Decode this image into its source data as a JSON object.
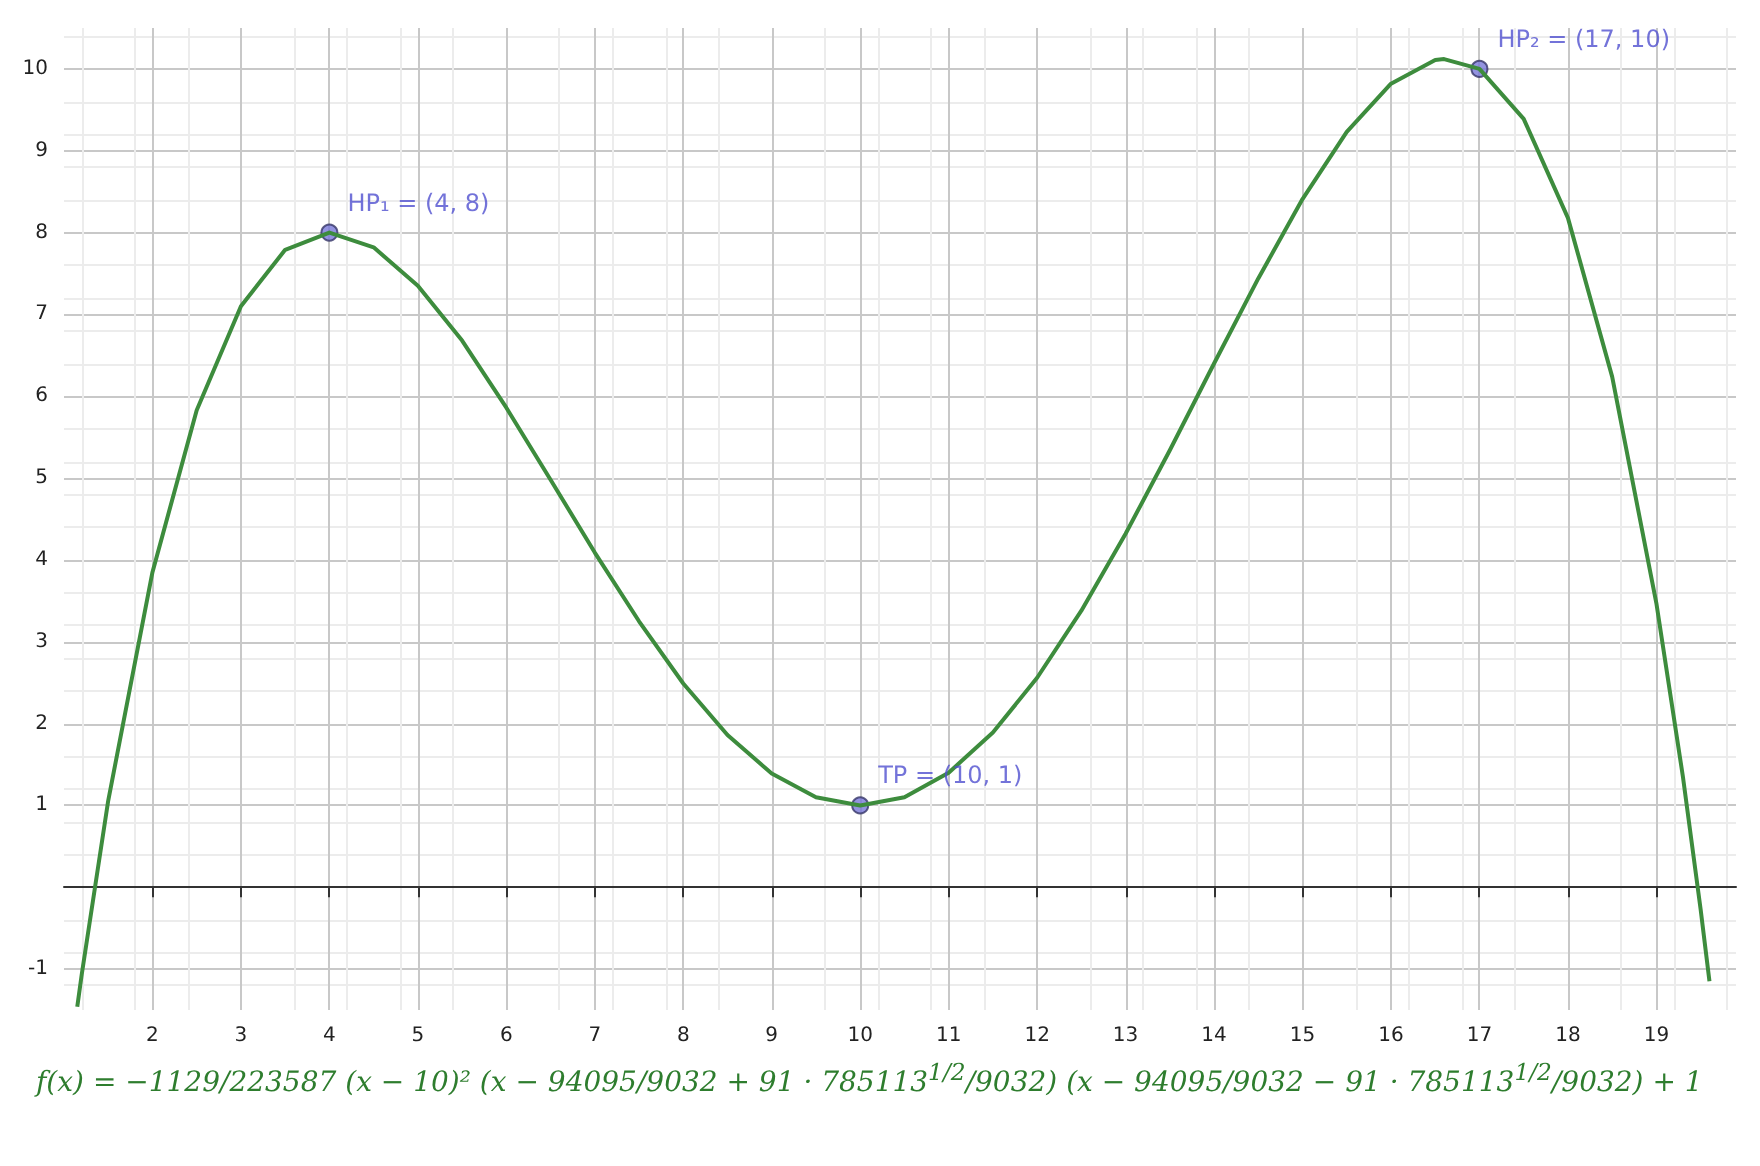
{
  "chart_data": {
    "type": "line",
    "xlim": [
      1,
      19.9
    ],
    "ylim": [
      -1.5,
      10.5
    ],
    "xticks": [
      2,
      3,
      4,
      5,
      6,
      7,
      8,
      9,
      10,
      11,
      12,
      13,
      14,
      15,
      16,
      17,
      18,
      19
    ],
    "yticks": [
      -1,
      1,
      2,
      3,
      4,
      5,
      6,
      7,
      8,
      9,
      10
    ],
    "grid": true,
    "series": [
      {
        "color": "#3d8c3d",
        "marker": "none",
        "x": [
          1.15,
          1.2,
          1.5,
          2,
          2.5,
          3,
          3.5,
          4,
          4.5,
          5,
          5.5,
          6,
          6.5,
          7,
          7.5,
          8,
          8.5,
          9,
          9.5,
          10,
          10.5,
          11,
          11.5,
          12,
          12.5,
          13,
          13.5,
          14,
          14.5,
          15,
          15.5,
          16,
          16.5,
          16.6,
          17,
          17.5,
          18,
          18.5,
          19,
          19.3,
          19.5,
          19.6
        ],
        "values": [
          -1.46,
          -1.07,
          1.06,
          3.85,
          5.83,
          7.1,
          7.79,
          8,
          7.82,
          7.35,
          6.68,
          5.86,
          4.98,
          4.09,
          3.25,
          2.49,
          1.86,
          1.39,
          1.1,
          1,
          1.1,
          1.4,
          1.89,
          2.56,
          3.38,
          4.32,
          5.34,
          6.4,
          7.44,
          8.41,
          9.23,
          9.82,
          10.11,
          10.12,
          10,
          9.39,
          8.18,
          6.24,
          3.47,
          1.35,
          -0.27,
          -1.15
        ]
      },
      {
        "type": "scatter",
        "color": "#7878d8",
        "marker": "circle",
        "x": [
          4,
          10,
          17
        ],
        "values": [
          8,
          1,
          10
        ]
      }
    ],
    "annotations": [
      {
        "text": "HP₁ = (4, 8)",
        "x": 4,
        "y": 8
      },
      {
        "text": "TP = (10, 1)",
        "x": 10,
        "y": 1
      },
      {
        "text": "HP₂ = (17, 10)",
        "x": 17,
        "y": 10
      },
      "f(x) = −1129/223587 (x − 10)² (x − 94095/9032 + 91 · 785113$^{1/2}$/9032) (x − 94095/9032 − 91 · 785113$^{1/2}$/9032) + 1"
    ]
  }
}
